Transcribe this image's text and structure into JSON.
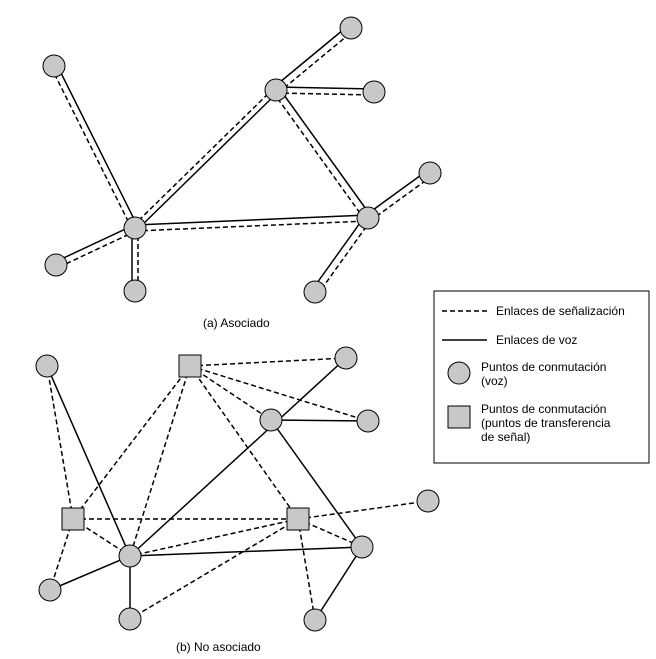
{
  "diagram": {
    "caption_a": "(a) Asociado",
    "caption_b": "(b) No asociado"
  },
  "legend": {
    "signaling": "Enlaces de señalización",
    "voice": "Enlaces de voz",
    "circle": [
      "Puntos de conmutación",
      "(voz)"
    ],
    "square": [
      "Puntos de conmutación",
      "(puntos de transferencia",
      "de señal)"
    ]
  },
  "colors": {
    "node_fill": "#c8c8c8",
    "stroke": "#000000"
  }
}
